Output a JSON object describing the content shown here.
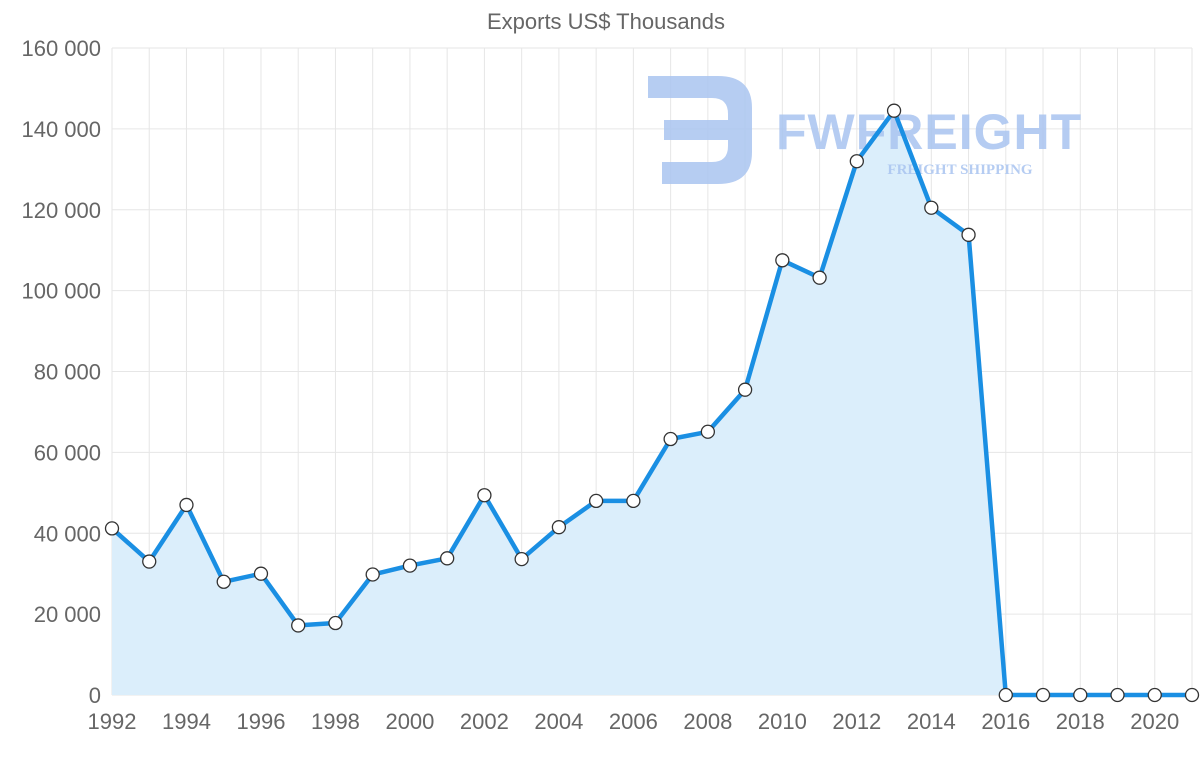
{
  "chart_data": {
    "type": "area",
    "title": "Exports US$ Thousands",
    "xlabel": "",
    "ylabel": "",
    "x": [
      1992,
      1993,
      1994,
      1995,
      1996,
      1997,
      1998,
      1999,
      2000,
      2001,
      2002,
      2003,
      2004,
      2005,
      2006,
      2007,
      2008,
      2009,
      2010,
      2011,
      2012,
      2013,
      2014,
      2015,
      2016,
      2017,
      2018,
      2019,
      2020,
      2021
    ],
    "x_tick_labels": [
      "1992",
      "1994",
      "1996",
      "1998",
      "2000",
      "2002",
      "2004",
      "2006",
      "2008",
      "2010",
      "2012",
      "2014",
      "2016",
      "2018",
      "2020"
    ],
    "y_tick_values": [
      0,
      20000,
      40000,
      60000,
      80000,
      100000,
      120000,
      140000,
      160000
    ],
    "y_tick_labels": [
      "0",
      "20 000",
      "40 000",
      "60 000",
      "80 000",
      "100 000",
      "120 000",
      "140 000",
      "160 000"
    ],
    "ylim": [
      0,
      160000
    ],
    "xlim": [
      1992,
      2021
    ],
    "grid": true,
    "legend": "none",
    "series": [
      {
        "name": "Exports US$ Thousands",
        "values": [
          41200,
          33000,
          47000,
          28000,
          30000,
          17200,
          17800,
          29800,
          32000,
          33800,
          49400,
          33600,
          41500,
          48000,
          48000,
          63300,
          65100,
          75500,
          107500,
          103200,
          132000,
          144500,
          120500,
          113800,
          0,
          0,
          0,
          0,
          0,
          0
        ]
      }
    ],
    "colors": {
      "line": "#1a8fe3",
      "fill": "#dbeefb",
      "grid": "#e6e6e6",
      "text": "#666666"
    }
  },
  "watermark": {
    "brand": "FWFREIGHT",
    "tagline": "FREIGHT SHIPPING",
    "color": "#a9c4f0"
  }
}
